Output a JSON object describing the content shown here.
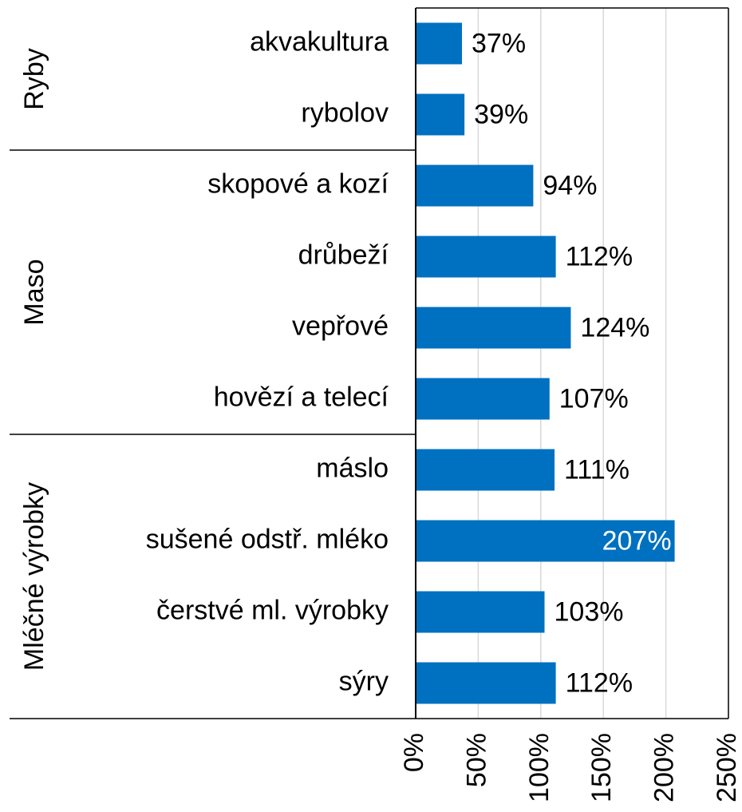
{
  "chart_data": {
    "type": "bar",
    "orientation": "horizontal",
    "color": "#0070c0",
    "grid": true,
    "groups": [
      {
        "name": "Ryby",
        "categories": [
          "akvakultura",
          "rybolov"
        ],
        "values": [
          37,
          39
        ],
        "value_labels": [
          "37%",
          "39%"
        ]
      },
      {
        "name": "Maso",
        "categories": [
          "skopové a kozí",
          "drůbeží",
          "vepřové",
          "hovězí a telecí"
        ],
        "values": [
          94,
          112,
          124,
          107
        ],
        "value_labels": [
          "94%",
          "112%",
          "124%",
          "107%"
        ]
      },
      {
        "name": "Mléčné výrobky",
        "categories": [
          "máslo",
          "sušené odstř. mléko",
          "čerstvé ml. výrobky",
          "sýry"
        ],
        "values": [
          111,
          207,
          103,
          112
        ],
        "value_labels": [
          "111%",
          "207%",
          "103%",
          "112%"
        ]
      }
    ],
    "xlim": [
      0,
      250
    ],
    "xticks": [
      {
        "value": 0,
        "label": "0%"
      },
      {
        "value": 50,
        "label": "50%"
      },
      {
        "value": 100,
        "label": "100%"
      },
      {
        "value": 150,
        "label": "150%"
      },
      {
        "value": 200,
        "label": "200%"
      },
      {
        "value": 250,
        "label": "250%"
      }
    ]
  }
}
